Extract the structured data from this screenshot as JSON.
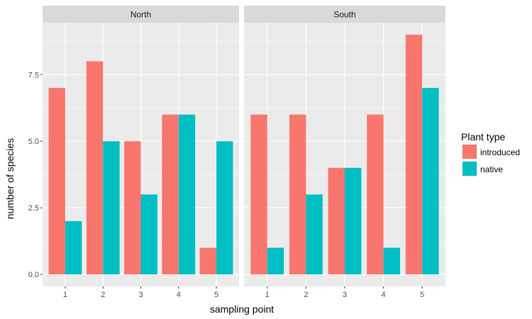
{
  "chart_data": {
    "type": "bar",
    "xlabel": "sampling point",
    "ylabel": "number of species",
    "ylim": [
      -0.45,
      9.45
    ],
    "yticks": [
      0.0,
      2.5,
      5.0,
      7.5
    ],
    "ytick_labels": [
      "0.0",
      "2.5",
      "5.0",
      "7.5"
    ],
    "categories": [
      "1",
      "2",
      "3",
      "4",
      "5"
    ],
    "grid": true,
    "legend": {
      "title": "Plant type",
      "position": "right",
      "entries": [
        {
          "label": "introduced",
          "color": "#F8766D"
        },
        {
          "label": "native",
          "color": "#00BFC4"
        }
      ]
    },
    "facets": [
      {
        "label": "North",
        "series": [
          {
            "name": "introduced",
            "values": [
              7,
              8,
              5,
              6,
              1
            ]
          },
          {
            "name": "native",
            "values": [
              2,
              5,
              3,
              6,
              5
            ]
          }
        ]
      },
      {
        "label": "South",
        "series": [
          {
            "name": "introduced",
            "values": [
              6,
              6,
              4,
              6,
              9
            ]
          },
          {
            "name": "native",
            "values": [
              1,
              3,
              4,
              1,
              7
            ]
          }
        ]
      }
    ],
    "colors": {
      "introduced": "#F8766D",
      "native": "#00BFC4",
      "panel_bg": "#EBEBEB",
      "strip_bg": "#D9D9D9",
      "grid": "#FFFFFF"
    }
  }
}
